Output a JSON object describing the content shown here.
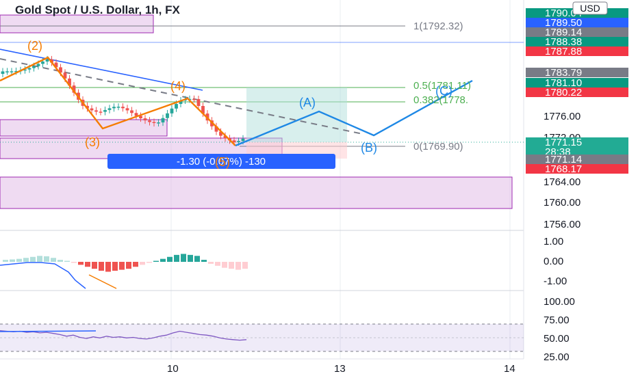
{
  "header": {
    "title": "Gold Spot / U.S. Dollar, 1h, FX",
    "currency_button": "USD"
  },
  "price_tags": [
    {
      "label": "1790.04",
      "color": "#089981"
    },
    {
      "label": "1789.50",
      "color": "#2962ff"
    },
    {
      "label": "1789.14",
      "color": "#787b86"
    },
    {
      "label": "1788.38",
      "color": "#089981"
    },
    {
      "label": "1787.88",
      "color": "#f23645"
    },
    {
      "label": "1783.79",
      "color": "#787b86"
    },
    {
      "label": "1781.10",
      "color": "#089981"
    },
    {
      "label": "1780.22",
      "color": "#f23645"
    },
    {
      "label": "1771.15\n28:38",
      "color": "#22ab94"
    },
    {
      "label": "1771.14",
      "color": "#787b86"
    },
    {
      "label": "1768.17",
      "color": "#f23645"
    }
  ],
  "fib_levels": [
    {
      "label": "1(1792.32)",
      "color": "#787b86"
    },
    {
      "label": "0.5(1781.11)",
      "color": "#4caf50"
    },
    {
      "label": "0.382(1778.",
      "color": "#4caf50"
    },
    {
      "label": "0(1769.90)",
      "color": "#787b86"
    }
  ],
  "waves": {
    "orange": [
      "(2)",
      "(3)",
      "(4)",
      "(5)"
    ],
    "blue": [
      "(A)",
      "(B)",
      "(C)"
    ]
  },
  "measure_label": "-1.30 (-0.07%) -130",
  "chart_data": {
    "type": "candlestick",
    "title": "Gold Spot / U.S. Dollar, 1h, FX",
    "price_axis_ticks": [
      "1776.00",
      "1772.00",
      "1764.00",
      "1760.00",
      "1756.00"
    ],
    "x_ticks": [
      "10",
      "13",
      "14"
    ],
    "ylim": [
      1755,
      1796
    ],
    "last_price": 1771.15,
    "countdown": "28:38",
    "macd": {
      "axis_ticks": [
        "1.00",
        "0.00",
        "-1.00"
      ],
      "histogram": [
        0.1,
        0.12,
        0.15,
        0.2,
        0.25,
        0.3,
        0.28,
        0.2,
        0.1,
        0.05,
        -0.05,
        -0.15,
        -0.25,
        -0.35,
        -0.45,
        -0.5,
        -0.45,
        -0.4,
        -0.35,
        -0.25,
        -0.15,
        -0.05,
        0.05,
        0.15,
        0.25,
        0.35,
        0.4,
        0.35,
        0.3,
        0.1,
        -0.1,
        -0.2,
        -0.3,
        -0.35,
        -0.4,
        -0.35
      ]
    },
    "rsi": {
      "axis_ticks": [
        "100.00",
        "75.00",
        "50.00",
        "25.00"
      ],
      "band": [
        30,
        70
      ],
      "values": [
        48,
        47,
        46,
        47,
        45,
        46,
        44,
        45,
        43,
        41,
        38,
        40,
        36,
        34,
        37,
        35,
        38,
        36,
        37,
        35,
        36,
        34,
        33,
        35,
        38,
        40,
        44,
        47,
        45,
        43,
        41,
        40,
        38,
        35,
        33,
        32,
        31,
        32
      ]
    }
  }
}
